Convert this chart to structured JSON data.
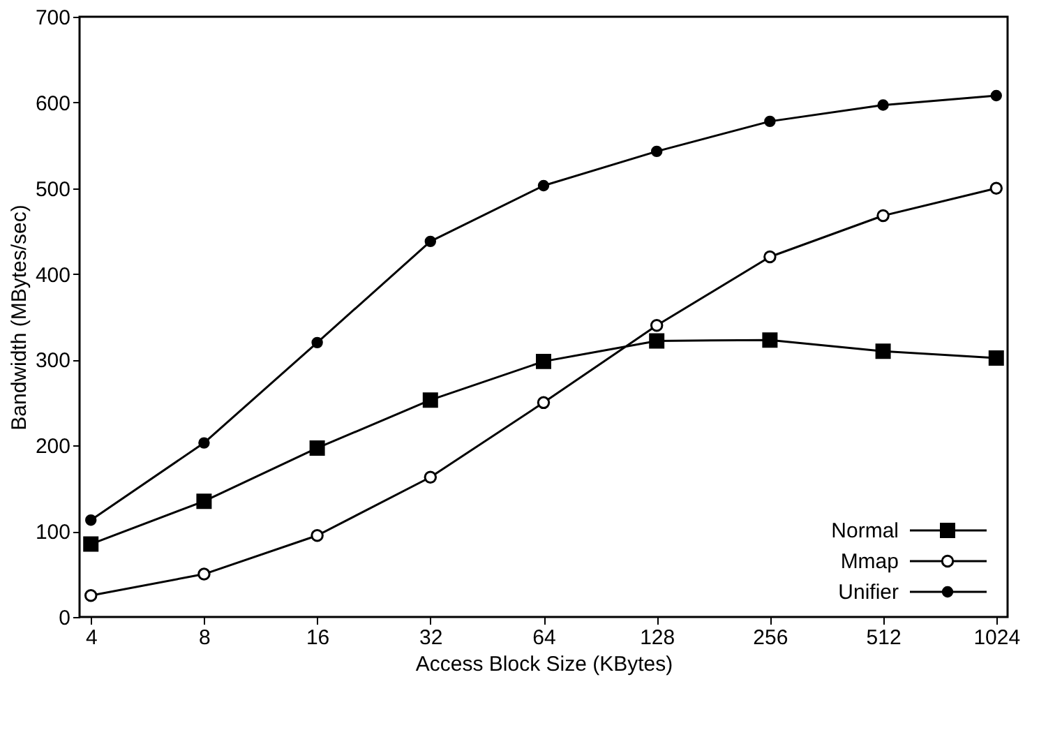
{
  "chart_data": {
    "type": "line",
    "xlabel": "Access Block Size (KBytes)",
    "ylabel": "Bandwidth (MBytes/sec)",
    "categories": [
      "4",
      "8",
      "16",
      "32",
      "64",
      "128",
      "256",
      "512",
      "1024"
    ],
    "ylim": [
      0,
      700
    ],
    "yticks": [
      0,
      100,
      200,
      300,
      400,
      500,
      600,
      700
    ],
    "grid": false,
    "legend": "bottom right",
    "line_style": "solid",
    "series": [
      {
        "name": "Normal",
        "color": "#000000",
        "marker": "square",
        "values": [
          85,
          135,
          197,
          253,
          298,
          322,
          323,
          310,
          302
        ]
      },
      {
        "name": "Mmap",
        "color": "#000000",
        "marker": "circle",
        "values": [
          25,
          50,
          95,
          163,
          250,
          340,
          420,
          468,
          500
        ]
      },
      {
        "name": "Unifier",
        "color": "#000000",
        "marker": "circle",
        "values": [
          113,
          203,
          320,
          438,
          503,
          543,
          578,
          597,
          608
        ]
      }
    ]
  }
}
